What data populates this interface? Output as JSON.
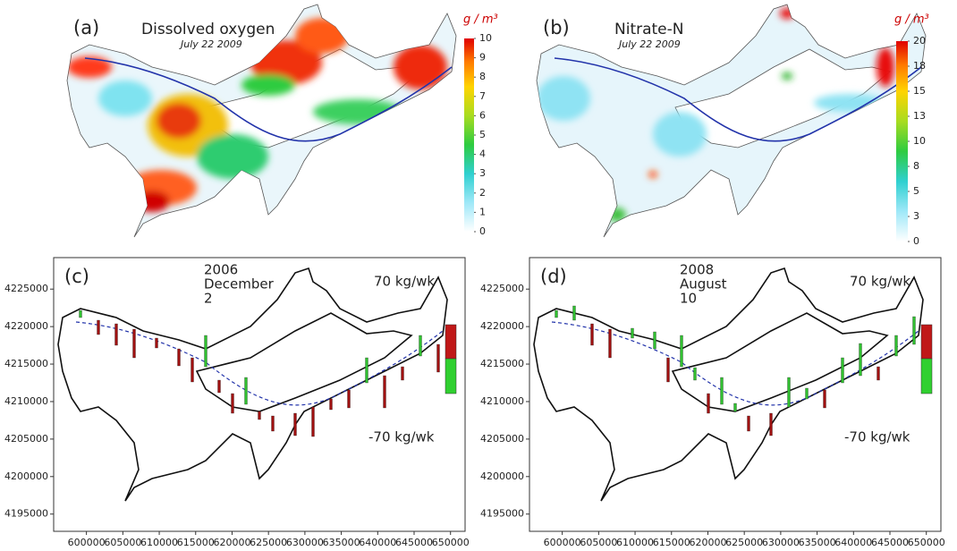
{
  "panels": [
    {
      "label": "(a)",
      "title": "Dissolved oxygen",
      "subtitle": "July 22 2009",
      "colorbar": {
        "unit": "g / m³",
        "lim": [
          0,
          10
        ],
        "ticks": [
          0,
          1,
          2,
          3,
          4,
          5,
          6,
          7,
          8,
          9,
          10
        ]
      }
    },
    {
      "label": "(b)",
      "title": "Nitrate-N",
      "subtitle": "July 22 2009",
      "colorbar": {
        "unit": "g / m³",
        "lim": [
          0,
          20
        ],
        "ticks": [
          0,
          {
            "value": 2.5,
            "label": "3"
          },
          5,
          {
            "value": 7.5,
            "label": "8"
          },
          10,
          {
            "value": 12.5,
            "label": "13"
          },
          15,
          {
            "value": 17.5,
            "label": "18"
          },
          20
        ]
      }
    },
    {
      "label": "(c)",
      "date_lines": [
        "2006",
        "December",
        "2"
      ],
      "max_label": "70 kg/wk",
      "min_label": "-70 kg/wk",
      "xlim": [
        595500,
        652000
      ],
      "ylim": [
        4192700,
        4229200
      ],
      "xticks": [
        600000,
        605000,
        610000,
        615000,
        620000,
        625000,
        630000,
        635000,
        640000,
        645000,
        650000
      ],
      "yticks": [
        4195000,
        4200000,
        4205000,
        4210000,
        4215000,
        4220000,
        4225000
      ]
    },
    {
      "label": "(d)",
      "date_lines": [
        "2008",
        "August",
        "10"
      ],
      "max_label": "70 kg/wk",
      "min_label": "-70 kg/wk",
      "xlim": [
        595500,
        652000
      ],
      "ylim": [
        4192700,
        4229200
      ],
      "xticks": [
        600000,
        605000,
        610000,
        615000,
        620000,
        625000,
        630000,
        635000,
        640000,
        645000,
        650000
      ],
      "yticks": [
        4195000,
        4200000,
        4205000,
        4210000,
        4215000,
        4220000,
        4225000
      ]
    }
  ]
}
